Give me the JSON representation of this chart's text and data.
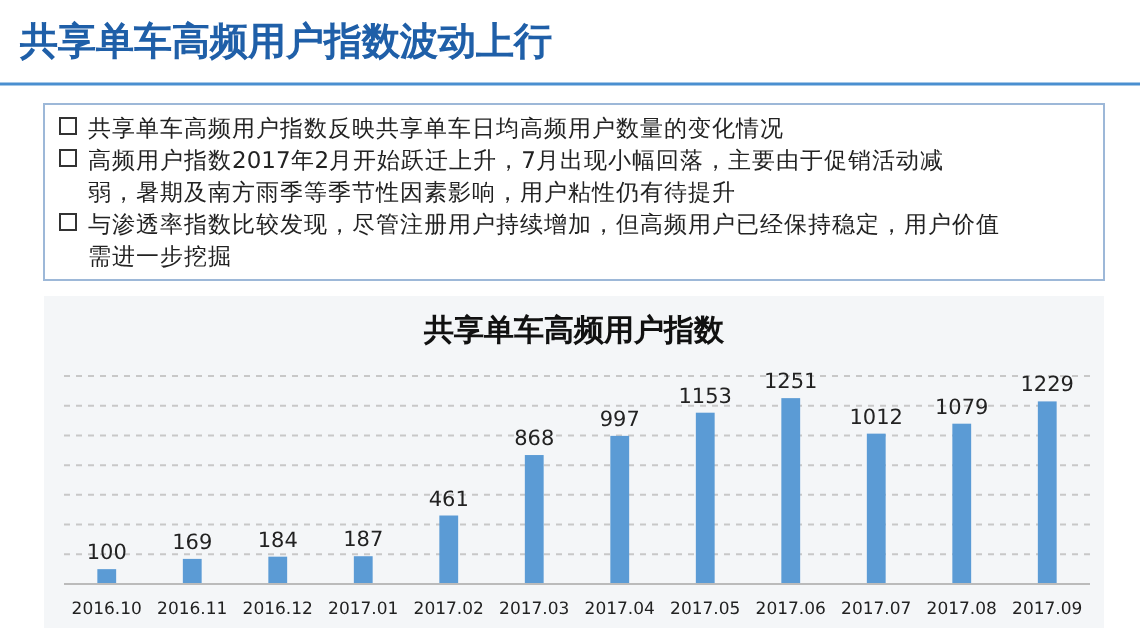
{
  "chart_data": {
    "type": "bar",
    "title": "共享单车高频用户指数",
    "annotations": [
      "共享单车高频用户指数波动上行",
      "共享单车高频用户指数反映共享单车日均高频用户数量的变化情况",
      "高频用户指数2017年2月开始跃迁上升，7月出现小幅回落，主要由于促销活动减弱，暑期及南方雨季等季节性因素影响，用户粘性仍有待提升",
      "与渗透率指数比较发现，尽管注册用户持续增加，但高频用户已经保持稳定，用户价值需进一步挖掘"
    ],
    "categories": [
      "2016.10",
      "2016.11",
      "2016.12",
      "2017.01",
      "2017.02",
      "2017.03",
      "2017.04",
      "2017.05",
      "2017.06",
      "2017.07",
      "2017.08",
      "2017.09"
    ],
    "values": [
      100,
      169,
      184,
      187,
      461,
      868,
      997,
      1153,
      1251,
      1012,
      1079,
      1229
    ],
    "color": "#5b9bd5",
    "data_labels": true,
    "grid": "y",
    "tick_labels": "x",
    "ylim": [
      0,
      1400
    ],
    "yticks": [
      {
        "value": 0,
        "label": null
      },
      {
        "value": 200,
        "label": null
      },
      {
        "value": 400,
        "label": null
      },
      {
        "value": 600,
        "label": null
      },
      {
        "value": 800,
        "label": null
      },
      {
        "value": 1000,
        "label": null
      },
      {
        "value": 1200,
        "label": null
      },
      {
        "value": 1400,
        "label": null
      }
    ]
  }
}
